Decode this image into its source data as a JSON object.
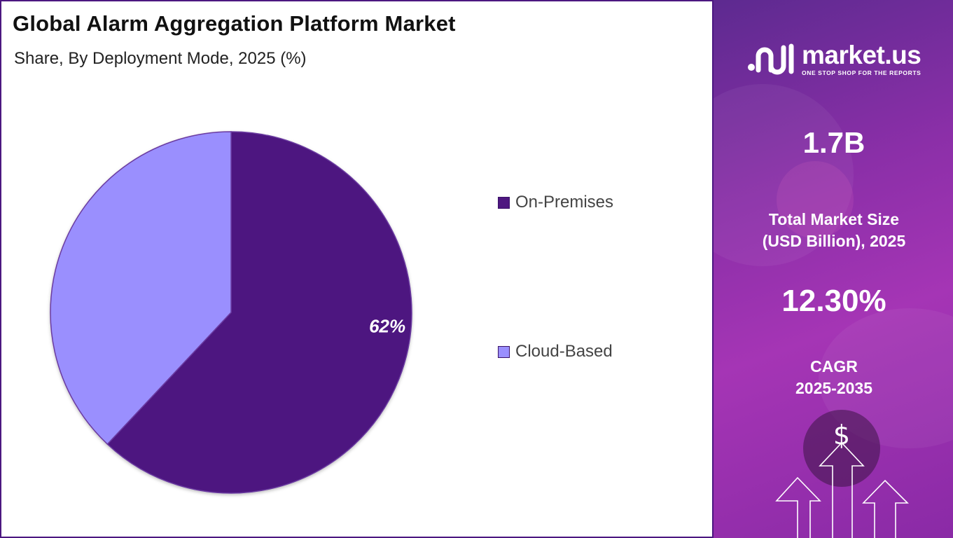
{
  "header": {
    "title": "Global Alarm Aggregation Platform Market",
    "subtitle": "Share, By Deployment Mode, 2025 (%)"
  },
  "chart_data": {
    "type": "pie",
    "title": "Global Alarm Aggregation Platform Market",
    "subtitle": "Share, By Deployment Mode, 2025 (%)",
    "categories": [
      "On-Premises",
      "Cloud-Based"
    ],
    "values": [
      62,
      38
    ],
    "data_labels": [
      "62%",
      ""
    ],
    "colors": [
      "#4e1780",
      "#9a8ffe"
    ],
    "legend_placement": "right"
  },
  "legend": [
    {
      "label": "On-Premises",
      "color": "#4e1780"
    },
    {
      "label": "Cloud-Based",
      "color": "#9a8ffe"
    }
  ],
  "sidebar": {
    "logo_name": "market.us",
    "logo_tagline": "ONE STOP SHOP FOR THE REPORTS",
    "market_size_value": "1.7B",
    "market_size_label_line1": "Total Market Size",
    "market_size_label_line2": "(USD Billion), 2025",
    "cagr_value": "12.30%",
    "cagr_label_line1": "CAGR",
    "cagr_label_line2": "2025-2035",
    "dollar_symbol": "$"
  }
}
